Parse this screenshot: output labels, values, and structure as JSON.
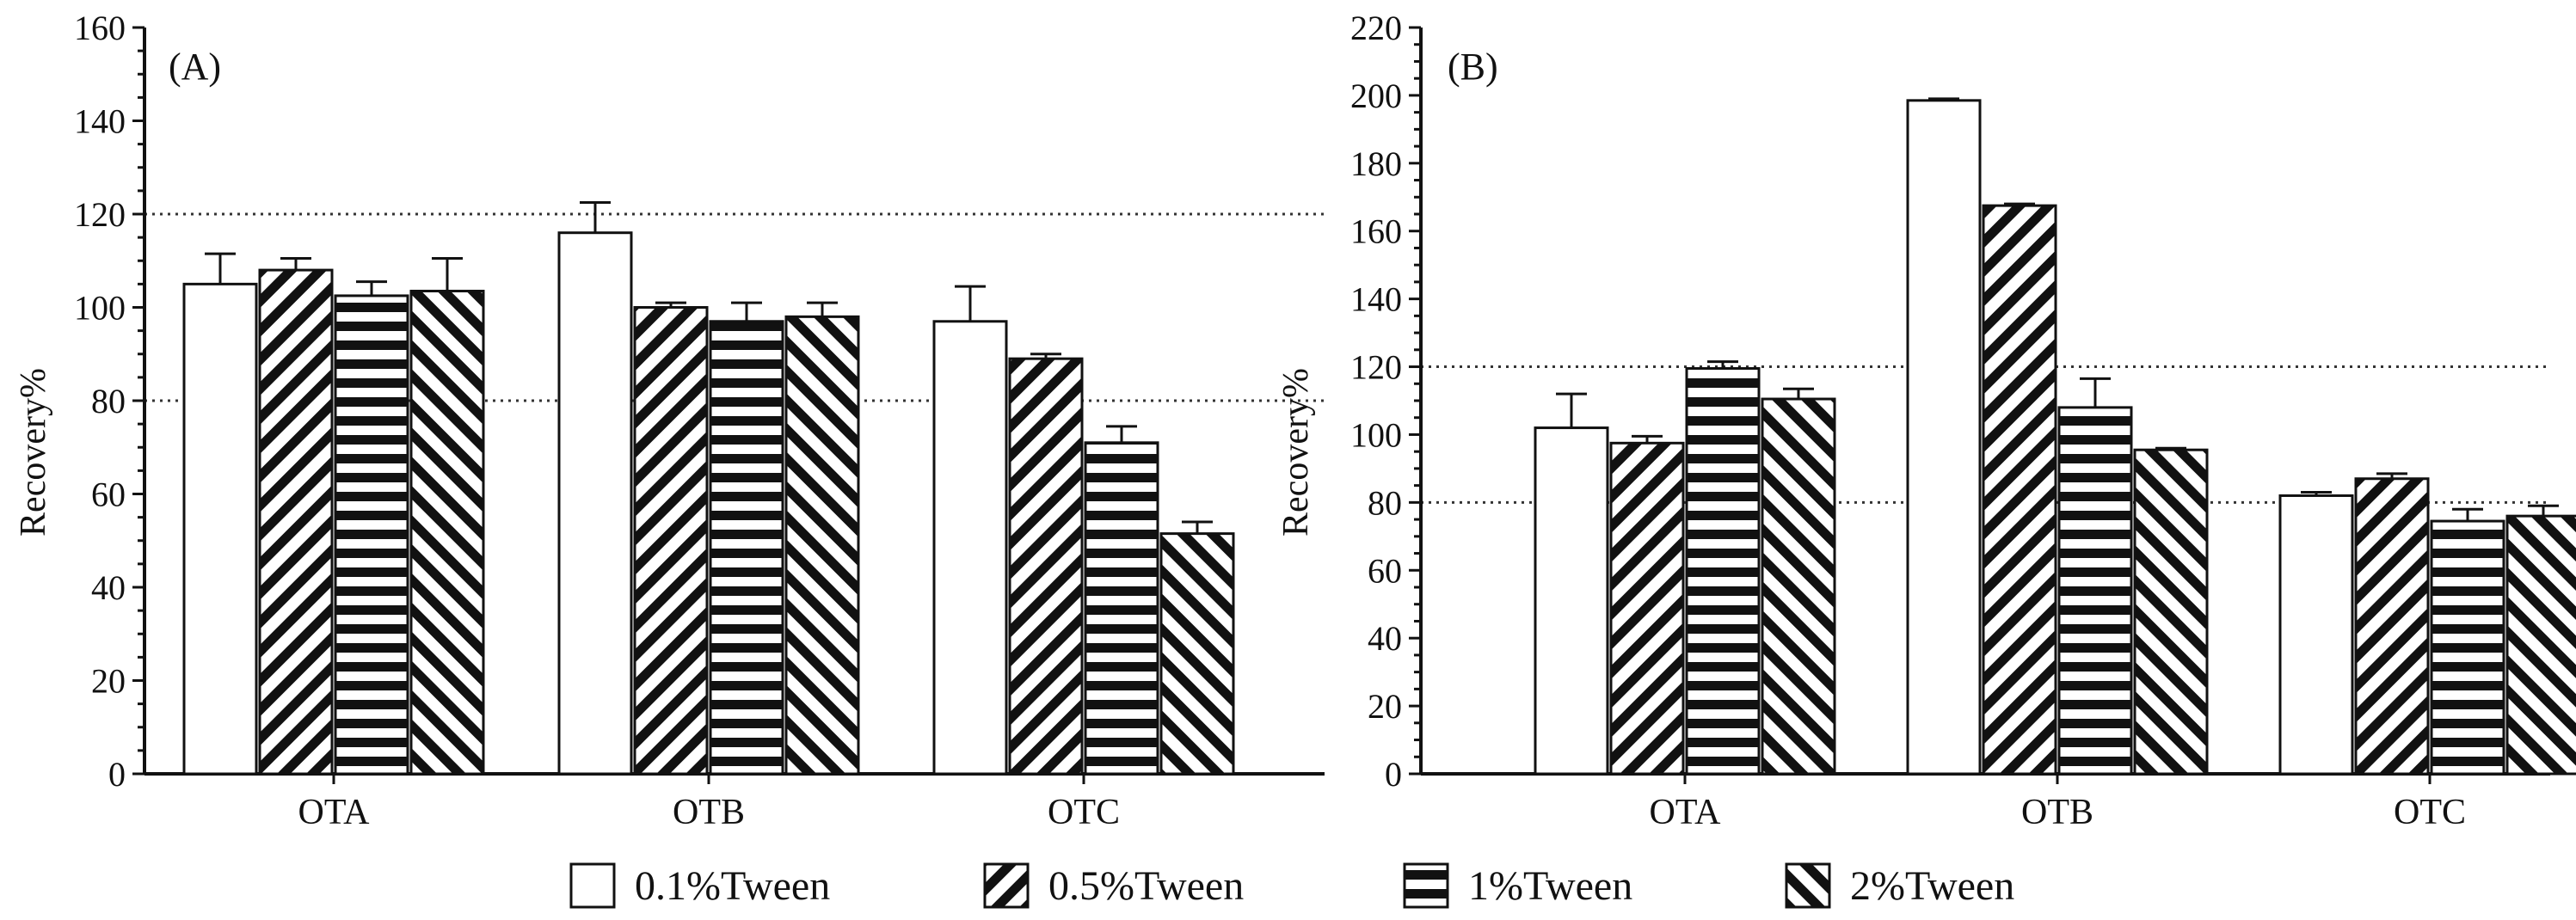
{
  "chart_data": [
    {
      "panel": "(A)",
      "type": "bar",
      "categories": [
        "OTA",
        "OTB",
        "OTC"
      ],
      "ylabel": "Recovery%",
      "ylim": [
        0,
        160
      ],
      "yticks": [
        0,
        20,
        40,
        60,
        80,
        100,
        120,
        140,
        160
      ],
      "reference_lines": [
        80,
        120
      ],
      "series": [
        {
          "name": "0.1%Tween",
          "pattern": "blank",
          "values": [
            105,
            116,
            97
          ],
          "errors": [
            6.5,
            6.5,
            7.5
          ]
        },
        {
          "name": "0.5%Tween",
          "pattern": "diag-forward",
          "values": [
            108,
            100,
            89
          ],
          "errors": [
            2.5,
            1,
            1
          ]
        },
        {
          "name": "1%Tween",
          "pattern": "horizontal",
          "values": [
            102.5,
            97,
            71
          ],
          "errors": [
            3,
            4,
            3.5
          ]
        },
        {
          "name": "2%Tween",
          "pattern": "diag-back",
          "values": [
            103.5,
            98,
            51.5
          ],
          "errors": [
            7,
            3,
            2.5
          ]
        }
      ]
    },
    {
      "panel": "(B)",
      "type": "bar",
      "categories": [
        "OTA",
        "OTB",
        "OTC"
      ],
      "ylabel": "Recovery%",
      "ylim": [
        0,
        220
      ],
      "yticks": [
        0,
        20,
        40,
        60,
        80,
        100,
        120,
        140,
        160,
        180,
        200,
        220
      ],
      "reference_lines": [
        80,
        120
      ],
      "series": [
        {
          "name": "0.1%Tween",
          "pattern": "blank",
          "values": [
            102,
            198.5,
            82
          ],
          "errors": [
            10,
            0.5,
            1
          ]
        },
        {
          "name": "0.5%Tween",
          "pattern": "diag-forward",
          "values": [
            97.5,
            167.5,
            87
          ],
          "errors": [
            2,
            0.5,
            1.5
          ]
        },
        {
          "name": "1%Tween",
          "pattern": "horizontal",
          "values": [
            119.5,
            108,
            74.5
          ],
          "errors": [
            2,
            8.5,
            3.5
          ]
        },
        {
          "name": "2%Tween",
          "pattern": "diag-back",
          "values": [
            110.5,
            95.5,
            76
          ],
          "errors": [
            3,
            0.5,
            3
          ]
        }
      ]
    }
  ],
  "legend": [
    {
      "name": "0.1%Tween",
      "pattern": "blank"
    },
    {
      "name": "0.5%Tween",
      "pattern": "diag-forward"
    },
    {
      "name": "1%Tween",
      "pattern": "horizontal"
    },
    {
      "name": "2%Tween",
      "pattern": "diag-back"
    }
  ]
}
